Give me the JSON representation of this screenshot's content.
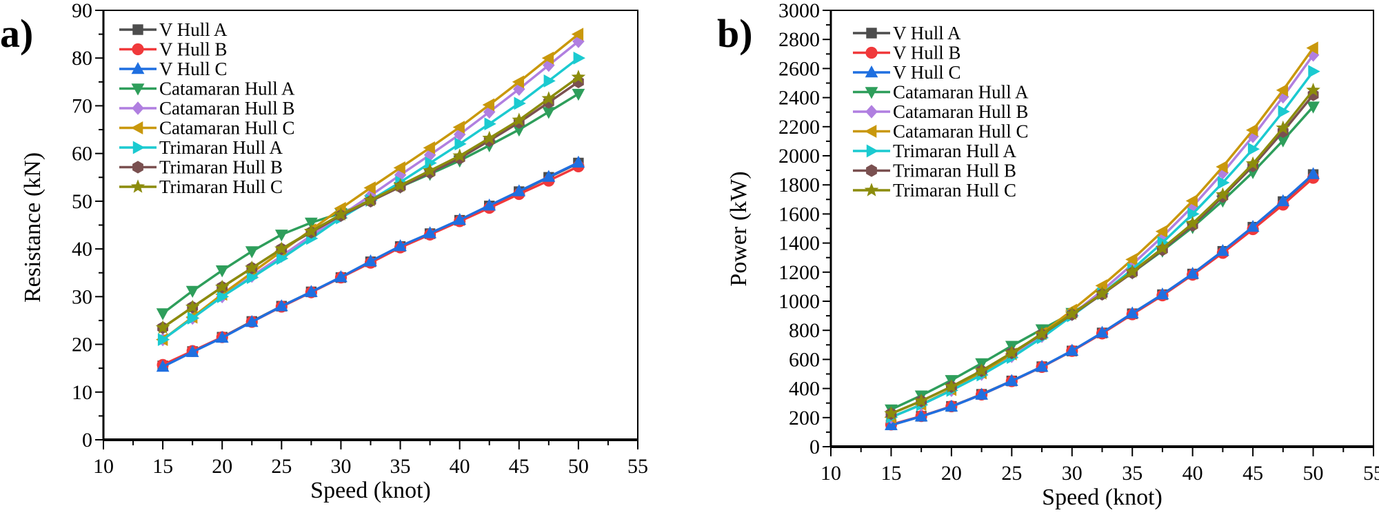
{
  "series_styles": [
    {
      "name": "V Hull A",
      "color": "#4d4d4d",
      "marker": "square"
    },
    {
      "name": "V Hull B",
      "color": "#f0393b",
      "marker": "circle"
    },
    {
      "name": "V Hull C",
      "color": "#1f6fe0",
      "marker": "triangle-up"
    },
    {
      "name": "Catamaran Hull A",
      "color": "#2e9e5b",
      "marker": "triangle-down"
    },
    {
      "name": "Catamaran Hull B",
      "color": "#b07fe0",
      "marker": "diamond"
    },
    {
      "name": "Catamaran Hull C",
      "color": "#c9980c",
      "marker": "triangle-left"
    },
    {
      "name": "Trimaran Hull A",
      "color": "#1bcad0",
      "marker": "triangle-right"
    },
    {
      "name": "Trimaran Hull B",
      "color": "#7a5050",
      "marker": "hexagon"
    },
    {
      "name": "Trimaran Hull C",
      "color": "#8c8c0c",
      "marker": "star"
    }
  ],
  "chart_data": [
    {
      "panel_label": "a)",
      "type": "line",
      "xlabel": "Speed (knot)",
      "ylabel": "Resistance (kN)",
      "xlim": [
        10,
        55
      ],
      "ylim": [
        0,
        90
      ],
      "xticks": [
        10,
        15,
        20,
        25,
        30,
        35,
        40,
        45,
        50,
        55
      ],
      "yticks": [
        0,
        10,
        20,
        30,
        40,
        50,
        60,
        70,
        80,
        90
      ],
      "grid": false,
      "legend": "top-left",
      "x": [
        15,
        17.5,
        20,
        22.5,
        25,
        27.5,
        30,
        32.5,
        35,
        37.5,
        40,
        42.5,
        45,
        47.5,
        50
      ],
      "series": [
        {
          "name": "V Hull A",
          "values": [
            15.5,
            18.5,
            21.5,
            24.8,
            28,
            31,
            34,
            37.3,
            40.5,
            43.2,
            46,
            49,
            52,
            55,
            58
          ]
        },
        {
          "name": "V Hull B",
          "values": [
            15.7,
            18.6,
            21.5,
            24.7,
            27.9,
            30.9,
            34,
            37.1,
            40.3,
            43,
            45.8,
            48.6,
            51.5,
            54.3,
            57.3
          ]
        },
        {
          "name": "V Hull C",
          "values": [
            15.3,
            18.4,
            21.4,
            24.7,
            28,
            31,
            34.1,
            37.4,
            40.6,
            43.3,
            46.1,
            49.1,
            52.1,
            55.1,
            58.1
          ]
        },
        {
          "name": "Catamaran Hull A",
          "values": [
            26.5,
            31.2,
            35.5,
            39.5,
            43,
            45.5,
            47.5,
            50.2,
            53,
            55.7,
            58.5,
            61.7,
            65,
            68.7,
            72.5
          ]
        },
        {
          "name": "Catamaran Hull B",
          "values": [
            21,
            25.5,
            30,
            34.3,
            38.5,
            42.8,
            47,
            51.2,
            55.5,
            59.7,
            64,
            68.7,
            73.5,
            78.5,
            83.5
          ]
        },
        {
          "name": "Catamaran Hull C",
          "values": [
            21,
            25.7,
            30.5,
            35,
            39.5,
            44,
            48.5,
            52.8,
            57,
            61.2,
            65.5,
            70.2,
            75,
            80,
            85
          ]
        },
        {
          "name": "Trimaran Hull A",
          "values": [
            21,
            25.5,
            30,
            34,
            38,
            42.2,
            46.5,
            50.2,
            54,
            58,
            62,
            66.2,
            70.5,
            75.2,
            80
          ]
        },
        {
          "name": "Trimaran Hull B",
          "values": [
            23.5,
            27.8,
            32,
            36,
            40,
            43.5,
            47,
            50,
            53,
            56,
            59,
            62.7,
            66.5,
            70.7,
            75
          ]
        },
        {
          "name": "Trimaran Hull C",
          "values": [
            23.5,
            27.8,
            32,
            36,
            40,
            43.7,
            47.2,
            50.2,
            53.3,
            56.4,
            59.5,
            63.2,
            67,
            71.5,
            76
          ]
        }
      ]
    },
    {
      "panel_label": "b)",
      "type": "line",
      "xlabel": "Speed (knot)",
      "ylabel": "Power (kW)",
      "xlim": [
        10,
        55
      ],
      "ylim": [
        0,
        3000
      ],
      "xticks": [
        10,
        15,
        20,
        25,
        30,
        35,
        40,
        45,
        50,
        55
      ],
      "yticks": [
        0,
        200,
        400,
        600,
        800,
        1000,
        1200,
        1400,
        1600,
        1800,
        2000,
        2200,
        2400,
        2600,
        2800,
        3000
      ],
      "grid": false,
      "legend": "top-left",
      "x": [
        15,
        17.5,
        20,
        22.5,
        25,
        27.5,
        30,
        32.5,
        35,
        37.5,
        40,
        42.5,
        45,
        47.5,
        50
      ],
      "series": [
        {
          "name": "V Hull A",
          "values": [
            150,
            209,
            277,
            360,
            452,
            550,
            658,
            782,
            914,
            1045,
            1187,
            1343,
            1509,
            1685,
            1871
          ]
        },
        {
          "name": "V Hull B",
          "values": [
            152,
            210,
            277,
            358,
            450,
            548,
            658,
            778,
            910,
            1040,
            1182,
            1332,
            1495,
            1664,
            1848
          ]
        },
        {
          "name": "V Hull C",
          "values": [
            148,
            208,
            276,
            358,
            452,
            550,
            660,
            784,
            917,
            1047,
            1189,
            1346,
            1512,
            1688,
            1874
          ]
        },
        {
          "name": "Catamaran Hull A",
          "values": [
            256,
            352,
            458,
            573,
            693,
            807,
            919,
            1052,
            1196,
            1347,
            1509,
            1691,
            1887,
            2105,
            2338
          ]
        },
        {
          "name": "Catamaran Hull B",
          "values": [
            203,
            288,
            387,
            498,
            621,
            759,
            909,
            1073,
            1253,
            1444,
            1651,
            1883,
            2133,
            2405,
            2693
          ]
        },
        {
          "name": "Catamaran Hull C",
          "values": [
            203,
            290,
            393,
            508,
            637,
            780,
            938,
            1107,
            1287,
            1480,
            1690,
            1924,
            2177,
            2451,
            2741
          ]
        },
        {
          "name": "Trimaran Hull A",
          "values": [
            203,
            288,
            387,
            493,
            613,
            749,
            900,
            1052,
            1219,
            1403,
            1600,
            1815,
            2046,
            2304,
            2580
          ]
        },
        {
          "name": "Trimaran Hull B",
          "values": [
            227,
            314,
            413,
            522,
            645,
            772,
            909,
            1048,
            1196,
            1354,
            1522,
            1719,
            1930,
            2166,
            2419
          ]
        },
        {
          "name": "Trimaran Hull C",
          "values": [
            227,
            314,
            413,
            522,
            645,
            775,
            913,
            1052,
            1203,
            1364,
            1535,
            1732,
            1945,
            2191,
            2451
          ]
        }
      ]
    }
  ]
}
